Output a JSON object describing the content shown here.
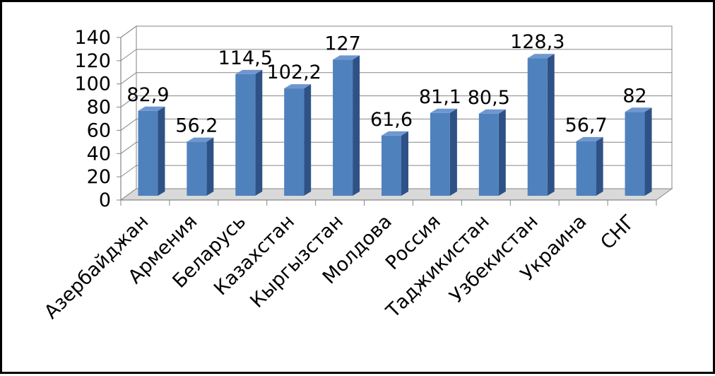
{
  "chart_data": {
    "type": "bar",
    "title": "",
    "xlabel": "",
    "ylabel": "",
    "categories": [
      "Азербайджан",
      "Армения",
      "Беларусь",
      "Казахстан",
      "Кыргызстан",
      "Молдова",
      "Россия",
      "Таджикистан",
      "Узбекистан",
      "Украина",
      "СНГ"
    ],
    "values": [
      82.9,
      56.2,
      114.5,
      102.2,
      127,
      61.6,
      81.1,
      80.5,
      128.3,
      56.7,
      82
    ],
    "data_labels": [
      "82,9",
      "56,2",
      "114,5",
      "102,2",
      "127",
      "61,6",
      "81,1",
      "80,5",
      "128,3",
      "56,7",
      "82"
    ],
    "y_ticks": [
      0,
      20,
      40,
      60,
      80,
      100,
      120,
      140
    ],
    "ylim": [
      0,
      140
    ],
    "grid": true,
    "legend": "none",
    "style": "3d-column",
    "colors": {
      "bar_front": "#4f81bd",
      "bar_side": "#2f5286",
      "bar_top": "#6f97cf",
      "grid": "#868686",
      "floor": "#d9d9d9"
    }
  }
}
